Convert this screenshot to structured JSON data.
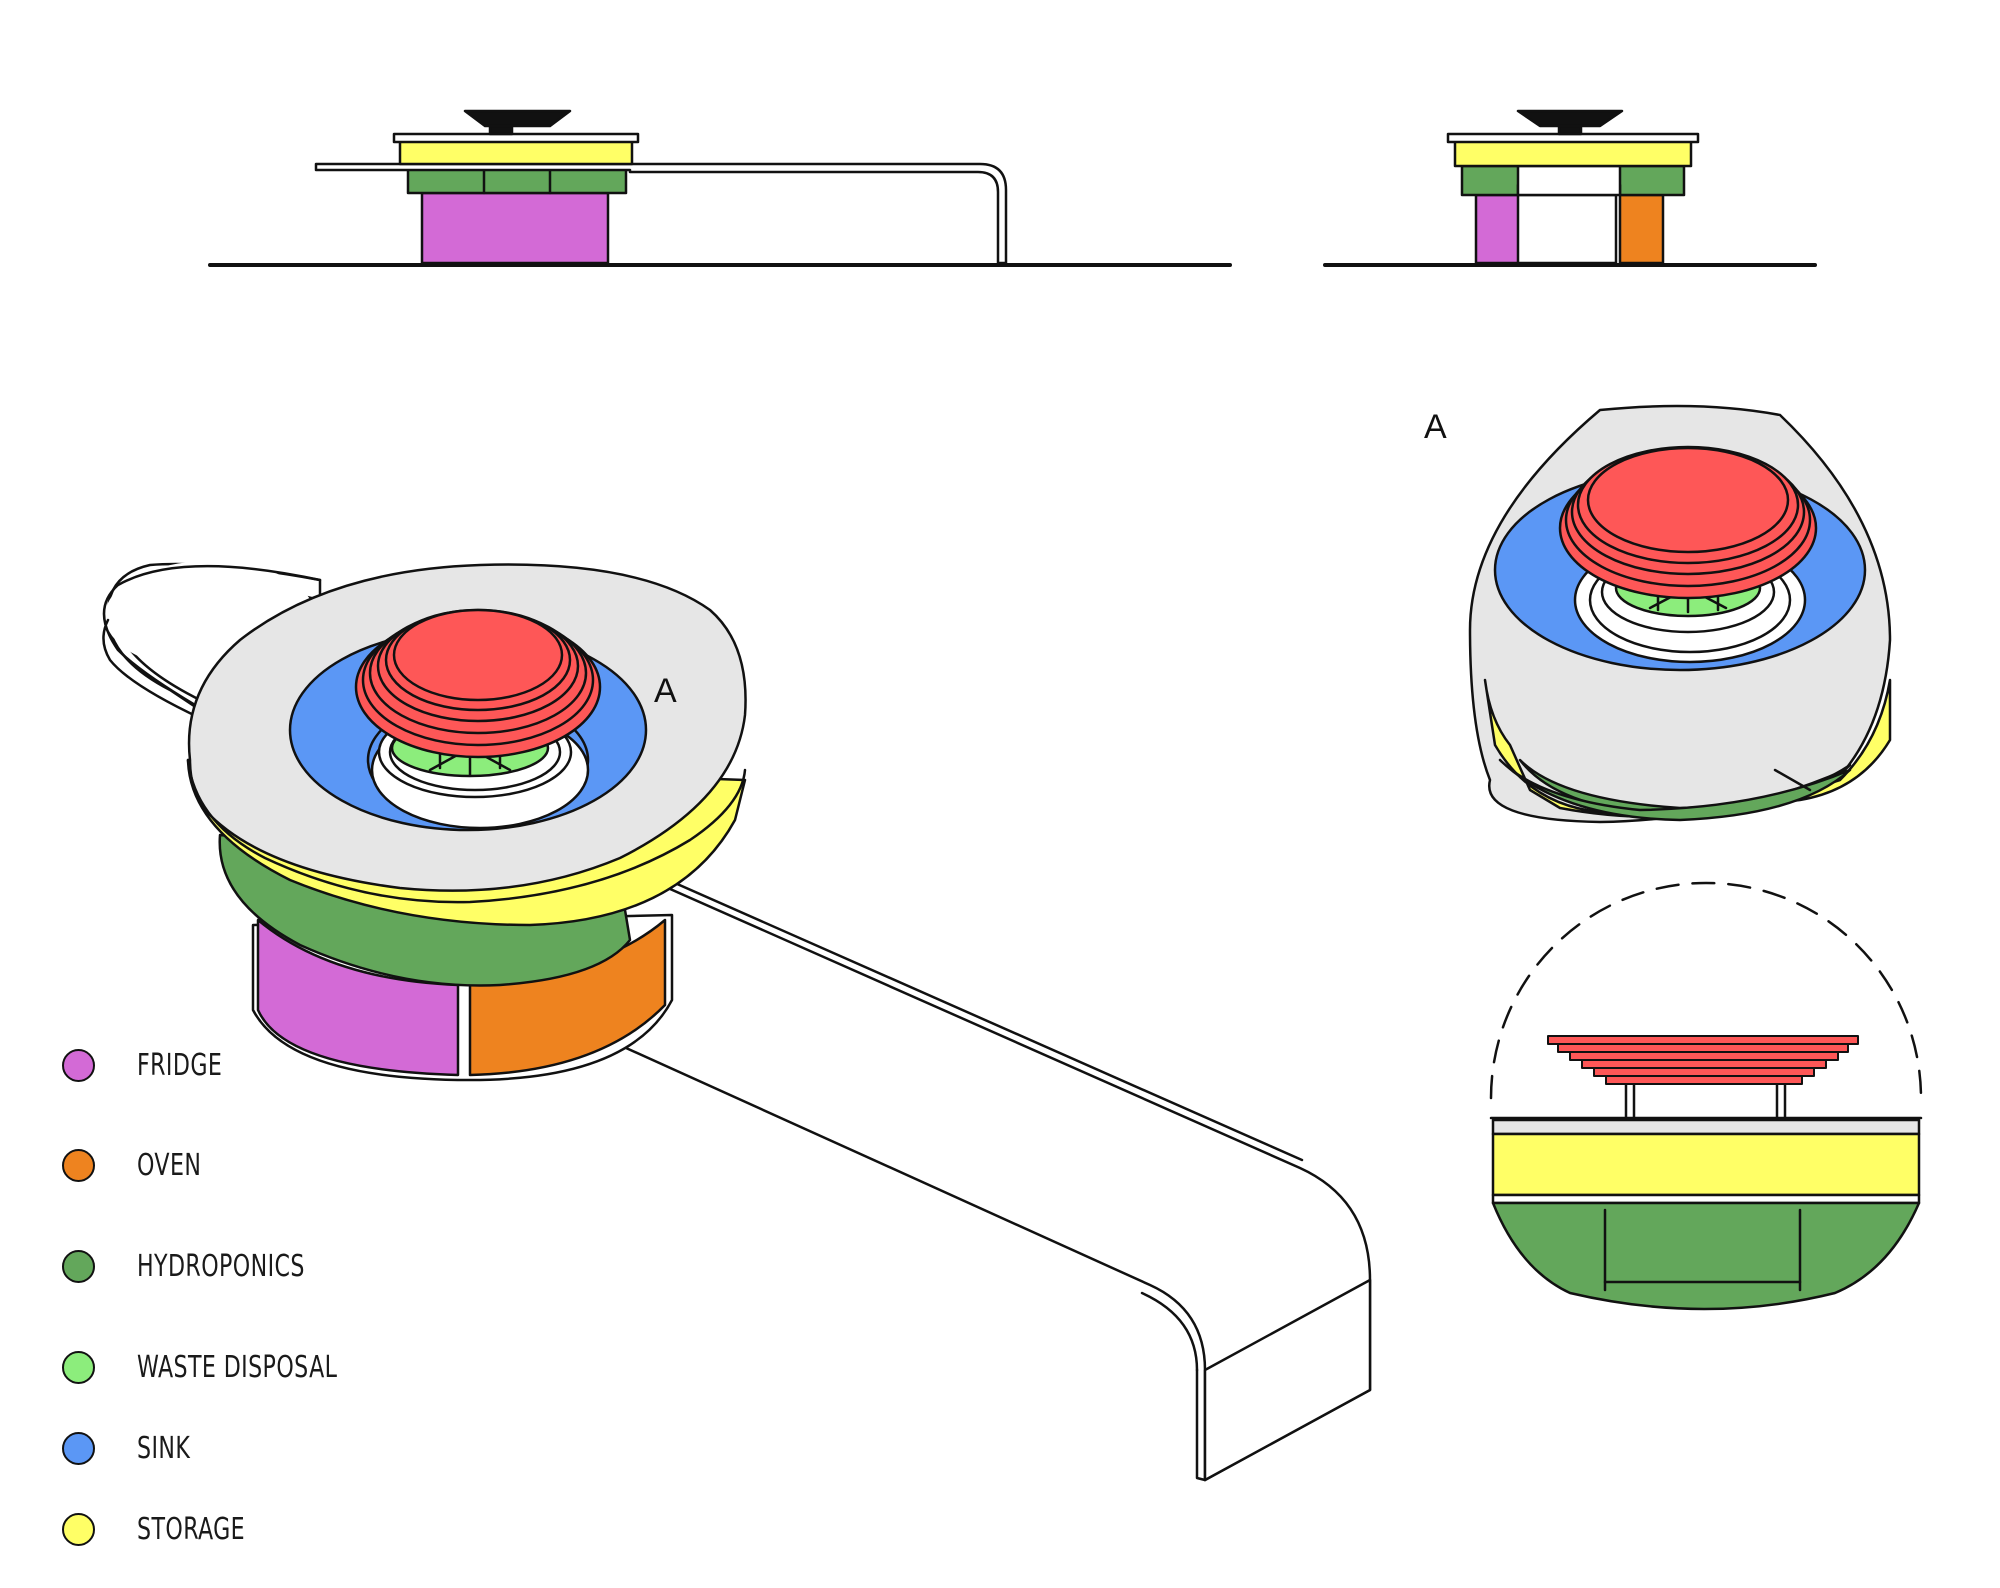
{
  "callouts": {
    "main": "A",
    "detail": "A"
  },
  "legend": [
    {
      "label": "FRIDGE",
      "color": "#d36ad6",
      "icon": "circle-swatch"
    },
    {
      "label": "OVEN",
      "color": "#ee831f",
      "icon": "circle-swatch"
    },
    {
      "label": "HYDROPONICS",
      "color": "#63a75b",
      "icon": "circle-swatch"
    },
    {
      "label": "WASTE DISPOSAL",
      "color": "#8ced7c",
      "icon": "circle-swatch"
    },
    {
      "label": "SINK",
      "color": "#5b97f5",
      "icon": "circle-swatch"
    },
    {
      "label": "STORAGE",
      "color": "#ffff66",
      "icon": "circle-swatch"
    }
  ],
  "colors": {
    "fridge": "#d36ad6",
    "oven": "#ee831f",
    "hydroponics": "#63a75b",
    "waste": "#8ced7c",
    "sink": "#5b97f5",
    "storage": "#ffff66",
    "top": "#e6e6e6",
    "plate": "#fe5757",
    "line": "#111111"
  }
}
